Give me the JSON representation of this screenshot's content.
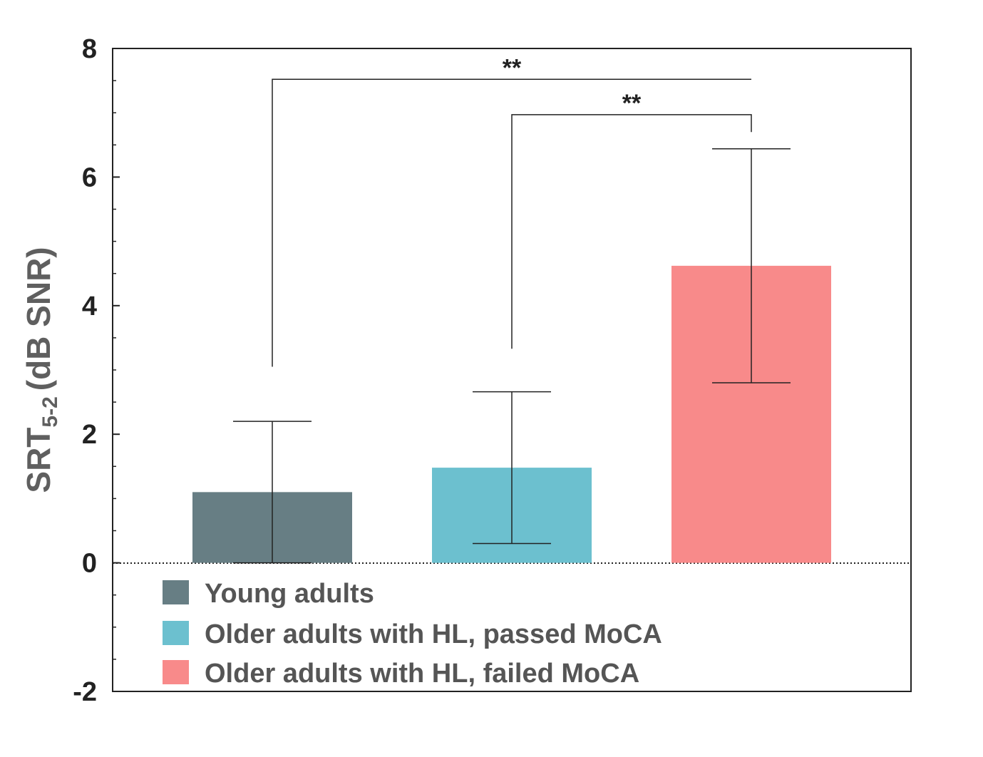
{
  "chart_data": {
    "type": "bar",
    "title": "",
    "ylabel": {
      "main": "SRT",
      "sub": "5-2",
      "unit": "(dB SNR)"
    },
    "xlabel": "",
    "ylim": [
      -2,
      8
    ],
    "yticks": [
      "-2",
      "0",
      "2",
      "4",
      "6",
      "8"
    ],
    "zero_line": "dotted",
    "grid": false,
    "legend_position": "bottom-left",
    "series": [
      {
        "name": "Young adults",
        "value": 1.1,
        "error_low": 0.0,
        "error_high": 2.2,
        "color": "#677e84"
      },
      {
        "name": "Older adults with HL, passed MoCA",
        "value": 1.48,
        "error_low": 0.3,
        "error_high": 2.66,
        "color": "#6cc0cf"
      },
      {
        "name": "Older adults with HL, failed MoCA",
        "value": 4.62,
        "error_low": 2.8,
        "error_high": 6.44,
        "color": "#f88a8a"
      }
    ],
    "significance": [
      {
        "from": 0,
        "to": 2,
        "label": "**",
        "level": 7.52,
        "left_drop": 3.05,
        "right_drop": 7.52
      },
      {
        "from": 1,
        "to": 2,
        "label": "**",
        "level": 6.97,
        "left_drop": 3.33,
        "right_drop": 6.7
      }
    ]
  }
}
